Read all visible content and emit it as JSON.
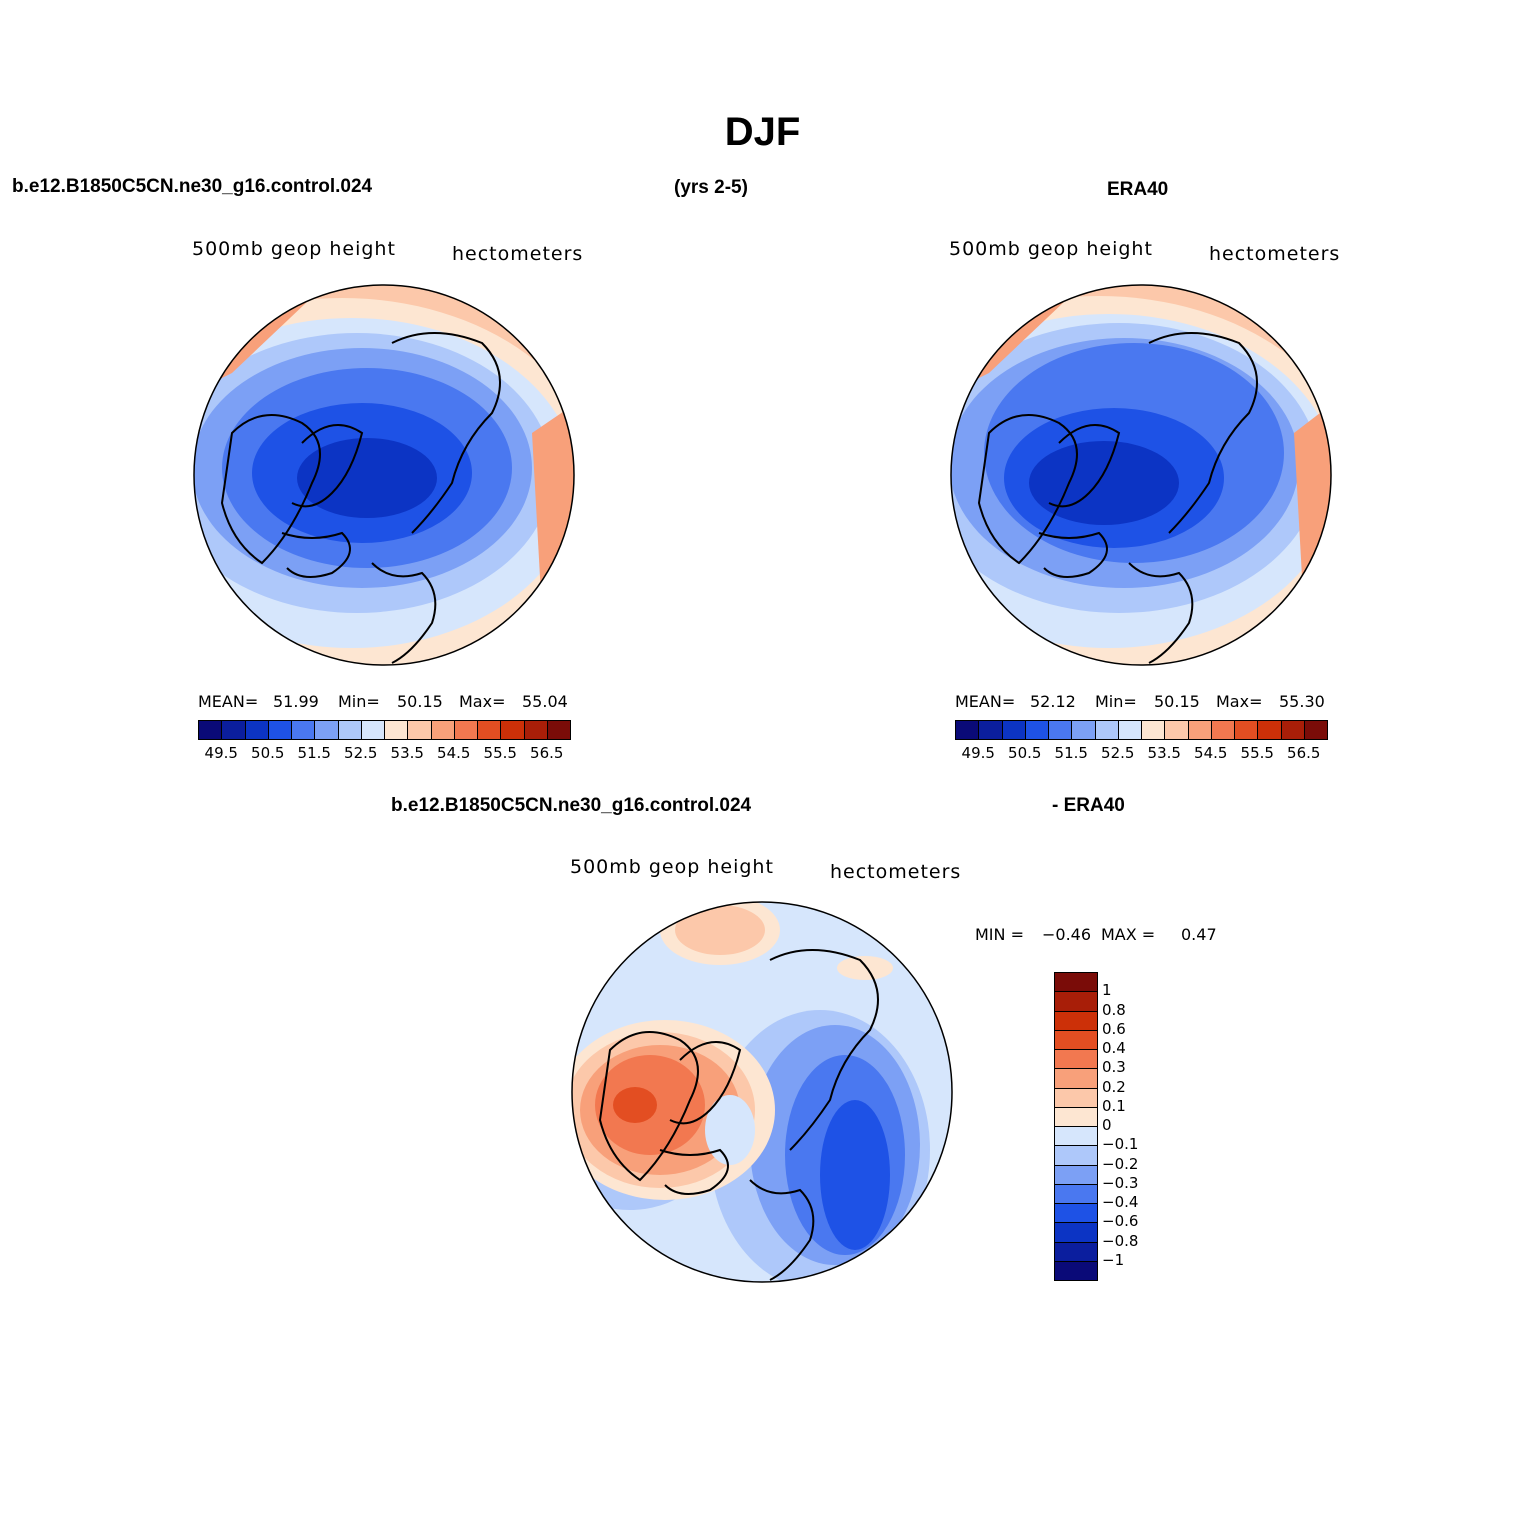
{
  "title": "DJF",
  "header": {
    "case_name": "b.e12.B1850C5CN.ne30_g16.control.024",
    "years": "(yrs 2-5)",
    "reference": "ERA40"
  },
  "panels": [
    {
      "id": "model",
      "variable": "500mb geop height",
      "units": "hectometers",
      "stats": {
        "mean_label": "MEAN=",
        "mean": "51.99",
        "min_label": "Min=",
        "min": "50.15",
        "max_label": "Max=",
        "max": "55.04"
      }
    },
    {
      "id": "obs",
      "variable": "500mb geop height",
      "units": "hectometers",
      "stats": {
        "mean_label": "MEAN=",
        "mean": "52.12",
        "min_label": "Min=",
        "min": "50.15",
        "max_label": "Max=",
        "max": "55.30"
      }
    },
    {
      "id": "diff",
      "title_left": "b.e12.B1850C5CN.ne30_g16.control.024",
      "title_right": "- ERA40",
      "variable": "500mb geop height",
      "units": "hectometers",
      "stats": {
        "min_label": "MIN =",
        "min": "−0.46",
        "max_label": "MAX =",
        "max": "0.47"
      }
    }
  ],
  "colorbar_main": {
    "colors": [
      "#0a0a78",
      "#0b1e9e",
      "#0c34c4",
      "#1e52e6",
      "#4a78f0",
      "#7ca0f5",
      "#aec8fa",
      "#d6e6fc",
      "#fde6d2",
      "#fcc8aa",
      "#f8a07a",
      "#f27850",
      "#e34e22",
      "#cc3008",
      "#a81e08",
      "#7a0c08"
    ],
    "tick_labels": [
      "49.5",
      "50.5",
      "51.5",
      "52.5",
      "53.5",
      "54.5",
      "55.5",
      "56.5"
    ]
  },
  "colorbar_diff": {
    "colors": [
      "#0a0a78",
      "#0b1e9e",
      "#0c34c4",
      "#1e52e6",
      "#4a78f0",
      "#7ca0f5",
      "#aec8fa",
      "#d6e6fc",
      "#fde6d2",
      "#fcc8aa",
      "#f8a07a",
      "#f27850",
      "#e34e22",
      "#cc3008",
      "#a81e08",
      "#7a0c08"
    ],
    "tick_labels": [
      "1",
      "0.8",
      "0.6",
      "0.4",
      "0.3",
      "0.2",
      "0.1",
      "0",
      "−0.1",
      "−0.2",
      "−0.3",
      "−0.4",
      "−0.6",
      "−0.8",
      "−1"
    ]
  }
}
